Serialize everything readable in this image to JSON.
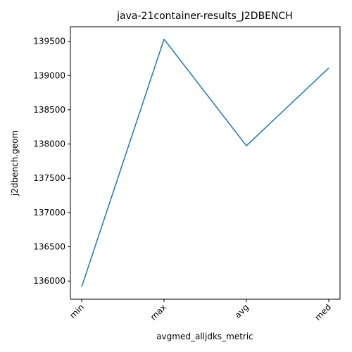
{
  "chart_data": {
    "type": "line",
    "title": "java-21container-results_J2DBENCH",
    "xlabel": "avgmed_alljdks_metric",
    "ylabel": "j2dbench.geom",
    "categories": [
      "min",
      "max",
      "avg",
      "med"
    ],
    "series": [
      {
        "values": [
          135915,
          139530,
          137975,
          139110
        ]
      }
    ],
    "yticks": [
      136000,
      136500,
      137000,
      137500,
      138000,
      138500,
      139000,
      139500
    ],
    "ylim": [
      135735,
      139712
    ],
    "grid": false,
    "line_color": "#1f77b4"
  }
}
